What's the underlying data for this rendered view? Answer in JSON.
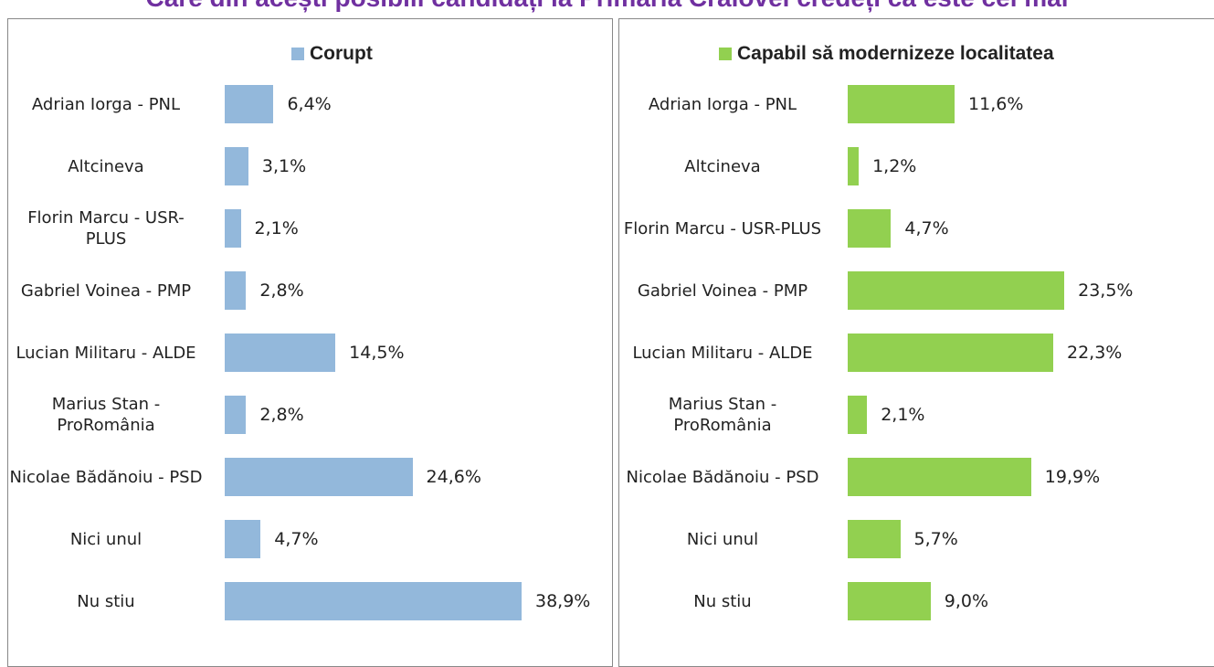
{
  "title": "Care din acești posibili candidați la Primăria Craiovei credeți că este cel mai",
  "chart_data": [
    {
      "type": "bar",
      "orientation": "horizontal",
      "categories": [
        "Adrian Iorga - PNL",
        "Altcineva",
        "Florin Marcu - USR-PLUS",
        "Gabriel Voinea - PMP",
        "Lucian Militaru - ALDE",
        "Marius Stan - ProRomânia",
        "Nicolae Bădănoiu - PSD",
        "Nici unul",
        "Nu stiu"
      ],
      "series": [
        {
          "name": "Corupt",
          "color": "#93b8db",
          "values": [
            6.4,
            3.1,
            2.1,
            2.8,
            14.5,
            2.8,
            24.6,
            4.7,
            38.9
          ],
          "value_labels": [
            "6,4%",
            "3,1%",
            "2,1%",
            "2,8%",
            "14,5%",
            "2,8%",
            "24,6%",
            "4,7%",
            "38,9%"
          ]
        }
      ]
    },
    {
      "type": "bar",
      "orientation": "horizontal",
      "categories": [
        "Adrian Iorga - PNL",
        "Altcineva",
        "Florin Marcu - USR-PLUS",
        "Gabriel Voinea - PMP",
        "Lucian Militaru - ALDE",
        "Marius Stan - ProRomânia",
        "Nicolae Bădănoiu - PSD",
        "Nici unul",
        "Nu stiu"
      ],
      "series": [
        {
          "name": "Capabil să modernizeze localitatea",
          "color": "#92d050",
          "values": [
            11.6,
            1.2,
            4.7,
            23.5,
            22.3,
            2.1,
            19.9,
            5.7,
            9.0
          ],
          "value_labels": [
            "11,6%",
            "1,2%",
            "4,7%",
            "23,5%",
            "22,3%",
            "2,1%",
            "19,9%",
            "5,7%",
            "9,0%"
          ]
        }
      ]
    }
  ]
}
